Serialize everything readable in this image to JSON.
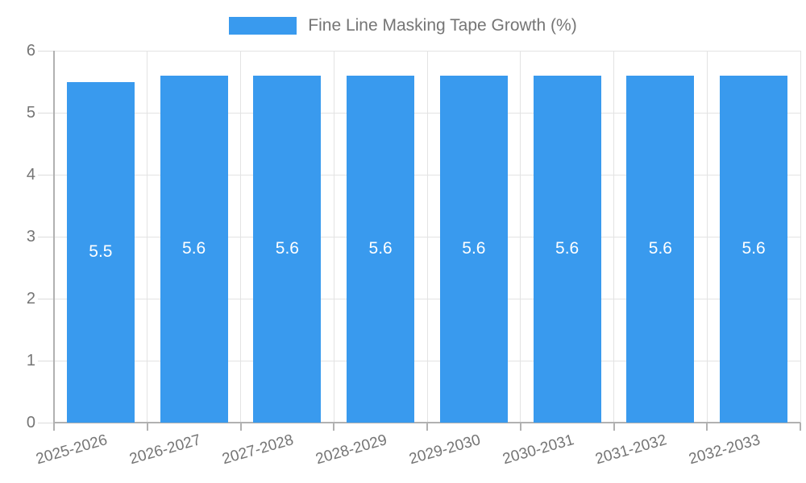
{
  "legend": {
    "label": "Fine Line Masking Tape Growth (%)"
  },
  "chart_data": {
    "type": "bar",
    "title": "Fine Line Masking Tape Growth (%)",
    "categories": [
      "2025-2026",
      "2026-2027",
      "2027-2028",
      "2028-2029",
      "2029-2030",
      "2030-2031",
      "2031-2032",
      "2032-2033"
    ],
    "values": [
      5.5,
      5.6,
      5.6,
      5.6,
      5.6,
      5.6,
      5.6,
      5.6
    ],
    "value_labels": [
      "5.5",
      "5.6",
      "5.6",
      "5.6",
      "5.6",
      "5.6",
      "5.6",
      "5.6"
    ],
    "xlabel": "",
    "ylabel": "",
    "ylim": [
      0,
      6
    ],
    "yticks": [
      0,
      1,
      2,
      3,
      4,
      5,
      6
    ],
    "grid": true,
    "legend_position": "top",
    "colors": {
      "bar": "#399AEE",
      "value_text": "#ffffff",
      "axis_text": "#757575",
      "gridline": "#e3e3e3",
      "axis_line": "#b1b1b1",
      "y_tick_mark": "#dcdcdc"
    }
  }
}
